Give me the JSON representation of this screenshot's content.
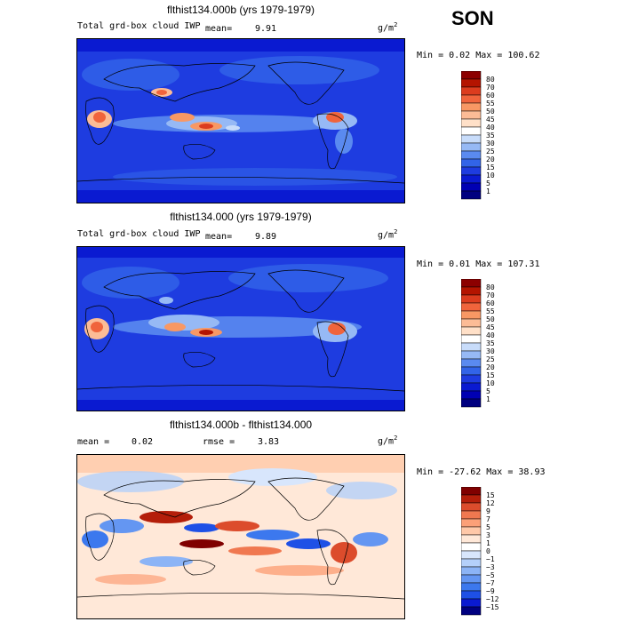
{
  "season": "SON",
  "units_base": "g/m",
  "units_exp": "2",
  "panels": [
    {
      "title": "flthist134.000b (yrs 1979-1979)",
      "variable": "Total grd-box cloud IWP",
      "mean_label": "mean=",
      "mean": "9.91",
      "minmax": "Min =    0.02 Max = 100.62",
      "colorbar_labels": [
        "80",
        "70",
        "60",
        "55",
        "50",
        "45",
        "40",
        "35",
        "30",
        "25",
        "20",
        "15",
        "10",
        "5",
        "1"
      ]
    },
    {
      "title": "flthist134.000 (yrs 1979-1979)",
      "variable": "Total grd-box cloud IWP",
      "mean_label": "mean=",
      "mean": "9.89",
      "minmax": "Min =    0.01 Max = 107.31",
      "colorbar_labels": [
        "80",
        "70",
        "60",
        "55",
        "50",
        "45",
        "40",
        "35",
        "30",
        "25",
        "20",
        "15",
        "10",
        "5",
        "1"
      ]
    },
    {
      "title": "flthist134.000b - flthist134.000",
      "mean_label": "mean =",
      "mean": "0.02",
      "rmse_label": "rmse =",
      "rmse": "3.83",
      "minmax": "Min = -27.62 Max =  38.93",
      "colorbar_labels": [
        "15",
        "12",
        "9",
        "7",
        "5",
        "3",
        "1",
        "0",
        "−1",
        "−3",
        "−5",
        "−7",
        "−9",
        "−12",
        "−15"
      ]
    }
  ],
  "colors": {
    "seq_scale": [
      "#000080",
      "#0000b3",
      "#0a1ad1",
      "#1e3ce0",
      "#3264e8",
      "#5a8af0",
      "#96b9f5",
      "#c8dcfa",
      "#ffffff",
      "#ffe0c8",
      "#fcbc96",
      "#f89864",
      "#f0643c",
      "#dc3c1e",
      "#b41400",
      "#8c0000"
    ],
    "div_scale": [
      "#000080",
      "#0a1ad1",
      "#1e50e6",
      "#3c78ee",
      "#6496f2",
      "#8cb4f6",
      "#b4d0fa",
      "#d8e6fc",
      "#ffffff",
      "#ffe8d8",
      "#ffc8a8",
      "#fca078",
      "#f07850",
      "#dc4c2c",
      "#b41e0a",
      "#800000"
    ]
  }
}
